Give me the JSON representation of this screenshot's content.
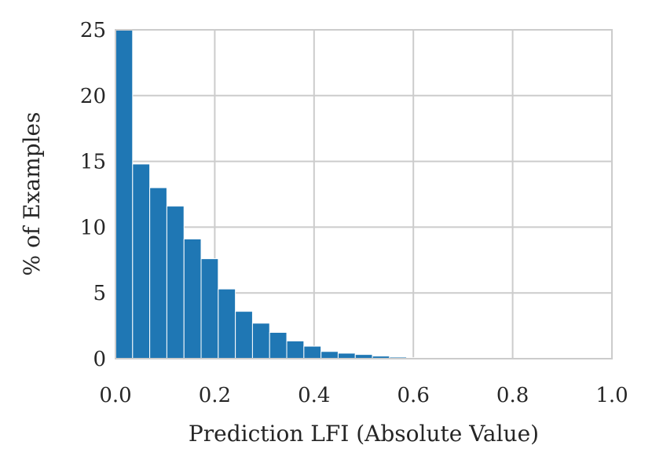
{
  "chart_data": {
    "type": "bar",
    "title": "",
    "xlabel": "Prediction LFI (Absolute Value)",
    "ylabel": "% of Examples",
    "xlim": [
      0.0,
      1.0
    ],
    "ylim": [
      0,
      25
    ],
    "grid": true,
    "bar_color": "#1f77b4",
    "grid_color": "#cccccc",
    "x_ticks": [
      "0.0",
      "0.2",
      "0.4",
      "0.6",
      "0.8",
      "1.0"
    ],
    "y_ticks": [
      "0",
      "5",
      "10",
      "15",
      "20",
      "25"
    ],
    "bin_width": 0.0345,
    "bin_starts": [
      0.0,
      0.0345,
      0.069,
      0.1035,
      0.138,
      0.1725,
      0.207,
      0.2415,
      0.276,
      0.3105,
      0.345,
      0.3795,
      0.414,
      0.4485,
      0.483,
      0.5175,
      0.552,
      0.5865,
      0.621,
      0.6555,
      0.69,
      0.7245,
      0.759,
      0.7935,
      0.828,
      0.8625,
      0.897,
      0.9315,
      0.966
    ],
    "values": [
      25.0,
      14.8,
      13.0,
      11.6,
      9.1,
      7.6,
      5.3,
      3.6,
      2.7,
      2.0,
      1.35,
      0.95,
      0.55,
      0.42,
      0.32,
      0.2,
      0.12,
      0.08,
      0.05,
      0.04,
      0.03,
      0.03,
      0.02,
      0.02,
      0.02,
      0.01,
      0.01,
      0.01,
      0.01
    ]
  }
}
